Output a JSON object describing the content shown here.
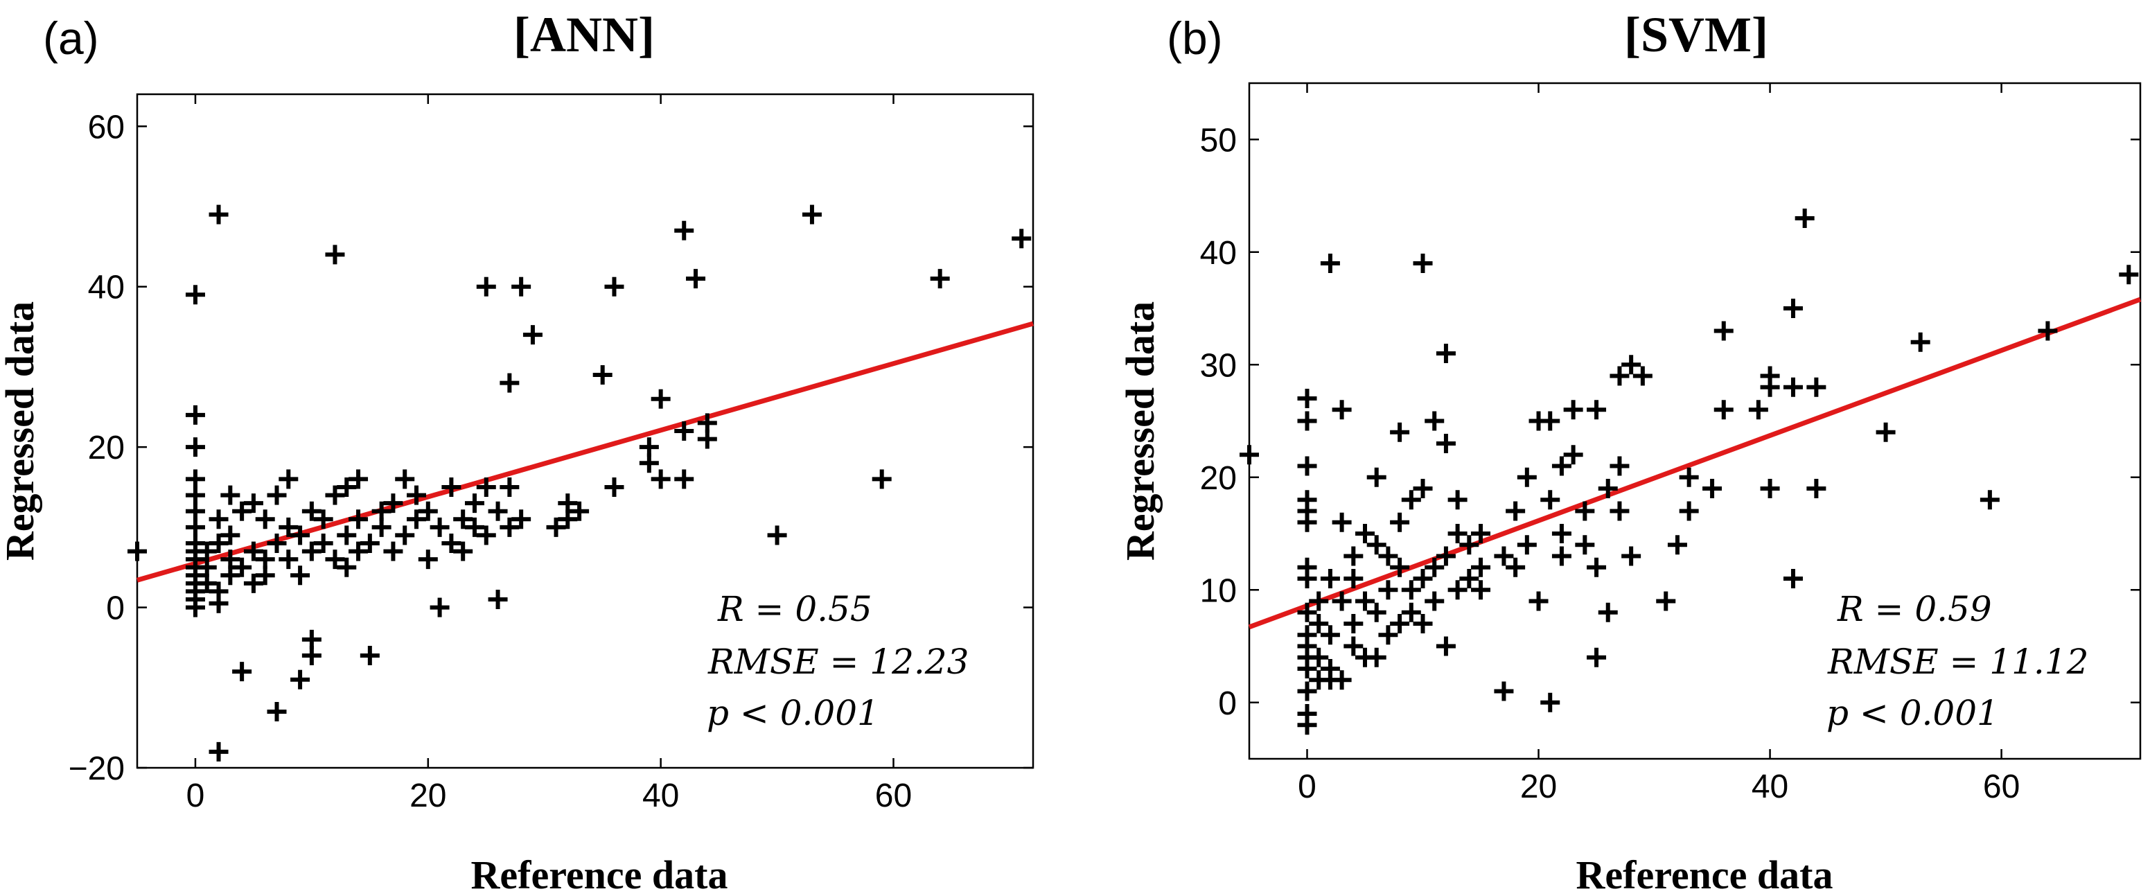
{
  "chart_data": [
    {
      "type": "scatter",
      "panel_label": "(a)",
      "title": "[ANN]",
      "xlabel": "Reference data",
      "ylabel": "Regressed data",
      "xlim": [
        -5,
        72
      ],
      "ylim": [
        -20,
        64
      ],
      "xticks": [
        0,
        20,
        40,
        60
      ],
      "yticks": [
        -20,
        0,
        20,
        40,
        60
      ],
      "grid": false,
      "marker": "plus",
      "marker_color": "#000000",
      "fit_color": "#e01a1a",
      "fit_line": {
        "x": [
          -5,
          72
        ],
        "y": [
          3.4,
          35.4
        ]
      },
      "stats": [
        "R = 0.55",
        "RMSE = 12.23",
        "p < 0.001"
      ],
      "points": [
        [
          -5,
          7
        ],
        [
          0,
          39
        ],
        [
          0,
          24
        ],
        [
          0,
          20
        ],
        [
          0,
          16
        ],
        [
          0,
          14
        ],
        [
          0,
          12
        ],
        [
          0,
          10
        ],
        [
          0,
          8
        ],
        [
          0,
          7
        ],
        [
          0,
          6
        ],
        [
          0,
          5
        ],
        [
          0,
          4
        ],
        [
          0,
          3
        ],
        [
          0,
          2
        ],
        [
          0,
          1
        ],
        [
          0,
          0
        ],
        [
          1,
          3
        ],
        [
          1,
          5
        ],
        [
          1,
          7
        ],
        [
          2,
          49
        ],
        [
          2,
          2
        ],
        [
          2,
          8
        ],
        [
          2,
          11
        ],
        [
          2,
          0.5
        ],
        [
          2,
          -18
        ],
        [
          3,
          4
        ],
        [
          3,
          6
        ],
        [
          3,
          9
        ],
        [
          3,
          14
        ],
        [
          4,
          12
        ],
        [
          4,
          5
        ],
        [
          4,
          -8
        ],
        [
          5,
          3
        ],
        [
          5,
          7
        ],
        [
          5,
          13
        ],
        [
          6,
          11
        ],
        [
          6,
          6
        ],
        [
          6,
          4
        ],
        [
          7,
          8
        ],
        [
          7,
          14
        ],
        [
          7,
          -13
        ],
        [
          8,
          10
        ],
        [
          8,
          16
        ],
        [
          8,
          6
        ],
        [
          9,
          9
        ],
        [
          9,
          4
        ],
        [
          9,
          -9
        ],
        [
          10,
          12
        ],
        [
          10,
          7
        ],
        [
          10,
          -4
        ],
        [
          10,
          -6
        ],
        [
          11,
          8
        ],
        [
          11,
          11
        ],
        [
          12,
          44
        ],
        [
          12,
          14
        ],
        [
          12,
          6
        ],
        [
          13,
          9
        ],
        [
          13,
          5
        ],
        [
          13,
          15
        ],
        [
          14,
          16
        ],
        [
          14,
          7
        ],
        [
          14,
          11
        ],
        [
          15,
          8
        ],
        [
          15,
          -6
        ],
        [
          16,
          10
        ],
        [
          16,
          12
        ],
        [
          17,
          7
        ],
        [
          17,
          13
        ],
        [
          18,
          16
        ],
        [
          18,
          9
        ],
        [
          19,
          14
        ],
        [
          19,
          11
        ],
        [
          20,
          6
        ],
        [
          20,
          12
        ],
        [
          21,
          10
        ],
        [
          21,
          0
        ],
        [
          22,
          15
        ],
        [
          22,
          8
        ],
        [
          23,
          11
        ],
        [
          23,
          7
        ],
        [
          24,
          13
        ],
        [
          24,
          10
        ],
        [
          25,
          40
        ],
        [
          25,
          9
        ],
        [
          25,
          15
        ],
        [
          26,
          12
        ],
        [
          26,
          1
        ],
        [
          27,
          28
        ],
        [
          27,
          15
        ],
        [
          27,
          10
        ],
        [
          28,
          40
        ],
        [
          28,
          11
        ],
        [
          29,
          34
        ],
        [
          31,
          10
        ],
        [
          32,
          13
        ],
        [
          32,
          11
        ],
        [
          33,
          12
        ],
        [
          35,
          29
        ],
        [
          36,
          40
        ],
        [
          36,
          15
        ],
        [
          39,
          20
        ],
        [
          39,
          18
        ],
        [
          40,
          26
        ],
        [
          40,
          16
        ],
        [
          42,
          47
        ],
        [
          42,
          22
        ],
        [
          42,
          16
        ],
        [
          43,
          41
        ],
        [
          44,
          23
        ],
        [
          44,
          21
        ],
        [
          50,
          9
        ],
        [
          53,
          49
        ],
        [
          59,
          16
        ],
        [
          64,
          41
        ],
        [
          71,
          46
        ]
      ]
    },
    {
      "type": "scatter",
      "panel_label": "(b)",
      "title": "[SVM]",
      "xlabel": "Reference data",
      "ylabel": "Regressed data",
      "xlim": [
        -5,
        72
      ],
      "ylim": [
        -5,
        55
      ],
      "xticks": [
        0,
        20,
        40,
        60
      ],
      "yticks": [
        0,
        10,
        20,
        30,
        40,
        50
      ],
      "grid": false,
      "marker": "plus",
      "marker_color": "#000000",
      "fit_color": "#e01a1a",
      "fit_line": {
        "x": [
          -5,
          72
        ],
        "y": [
          6.7,
          35.8
        ]
      },
      "stats": [
        "R = 0.59",
        "RMSE = 11.12",
        "p < 0.001"
      ],
      "points": [
        [
          -5,
          22
        ],
        [
          0,
          27
        ],
        [
          0,
          25
        ],
        [
          0,
          21
        ],
        [
          0,
          18
        ],
        [
          0,
          17
        ],
        [
          0,
          16
        ],
        [
          0,
          12
        ],
        [
          0,
          11
        ],
        [
          0,
          8
        ],
        [
          0,
          6
        ],
        [
          0,
          5
        ],
        [
          0,
          4
        ],
        [
          0,
          3
        ],
        [
          0,
          1
        ],
        [
          0,
          -1
        ],
        [
          0,
          -2
        ],
        [
          1,
          2
        ],
        [
          1,
          4
        ],
        [
          1,
          7
        ],
        [
          1,
          9
        ],
        [
          2,
          39
        ],
        [
          2,
          3
        ],
        [
          2,
          2
        ],
        [
          2,
          6
        ],
        [
          2,
          11
        ],
        [
          3,
          26
        ],
        [
          3,
          16
        ],
        [
          3,
          2
        ],
        [
          3,
          9
        ],
        [
          4,
          13
        ],
        [
          4,
          5
        ],
        [
          4,
          7
        ],
        [
          4,
          11
        ],
        [
          5,
          15
        ],
        [
          5,
          4
        ],
        [
          5,
          9
        ],
        [
          6,
          20
        ],
        [
          6,
          14
        ],
        [
          6,
          4
        ],
        [
          6,
          8
        ],
        [
          7,
          10
        ],
        [
          7,
          6
        ],
        [
          7,
          13
        ],
        [
          8,
          24
        ],
        [
          8,
          7
        ],
        [
          8,
          16
        ],
        [
          8,
          12
        ],
        [
          9,
          8
        ],
        [
          9,
          10
        ],
        [
          9,
          18
        ],
        [
          10,
          39
        ],
        [
          10,
          19
        ],
        [
          10,
          11
        ],
        [
          10,
          7
        ],
        [
          11,
          12
        ],
        [
          11,
          25
        ],
        [
          11,
          9
        ],
        [
          12,
          31
        ],
        [
          12,
          23
        ],
        [
          12,
          5
        ],
        [
          12,
          13
        ],
        [
          13,
          15
        ],
        [
          13,
          10
        ],
        [
          13,
          18
        ],
        [
          14,
          11
        ],
        [
          14,
          14
        ],
        [
          15,
          12
        ],
        [
          15,
          10
        ],
        [
          15,
          15
        ],
        [
          17,
          1
        ],
        [
          17,
          13
        ],
        [
          18,
          17
        ],
        [
          18,
          12
        ],
        [
          19,
          20
        ],
        [
          19,
          14
        ],
        [
          20,
          25
        ],
        [
          20,
          9
        ],
        [
          21,
          25
        ],
        [
          21,
          0
        ],
        [
          21,
          18
        ],
        [
          22,
          21
        ],
        [
          22,
          13
        ],
        [
          22,
          15
        ],
        [
          23,
          26
        ],
        [
          23,
          22
        ],
        [
          24,
          17
        ],
        [
          24,
          14
        ],
        [
          25,
          26
        ],
        [
          25,
          12
        ],
        [
          25,
          4
        ],
        [
          26,
          19
        ],
        [
          26,
          8
        ],
        [
          27,
          29
        ],
        [
          27,
          17
        ],
        [
          27,
          21
        ],
        [
          28,
          30
        ],
        [
          28,
          13
        ],
        [
          29,
          29
        ],
        [
          31,
          9
        ],
        [
          32,
          14
        ],
        [
          33,
          20
        ],
        [
          33,
          17
        ],
        [
          35,
          19
        ],
        [
          36,
          33
        ],
        [
          36,
          26
        ],
        [
          39,
          26
        ],
        [
          40,
          29
        ],
        [
          40,
          28
        ],
        [
          40,
          19
        ],
        [
          42,
          35
        ],
        [
          42,
          28
        ],
        [
          42,
          11
        ],
        [
          43,
          43
        ],
        [
          44,
          28
        ],
        [
          44,
          19
        ],
        [
          50,
          24
        ],
        [
          53,
          32
        ],
        [
          59,
          18
        ],
        [
          64,
          33
        ],
        [
          71,
          38
        ]
      ]
    }
  ]
}
